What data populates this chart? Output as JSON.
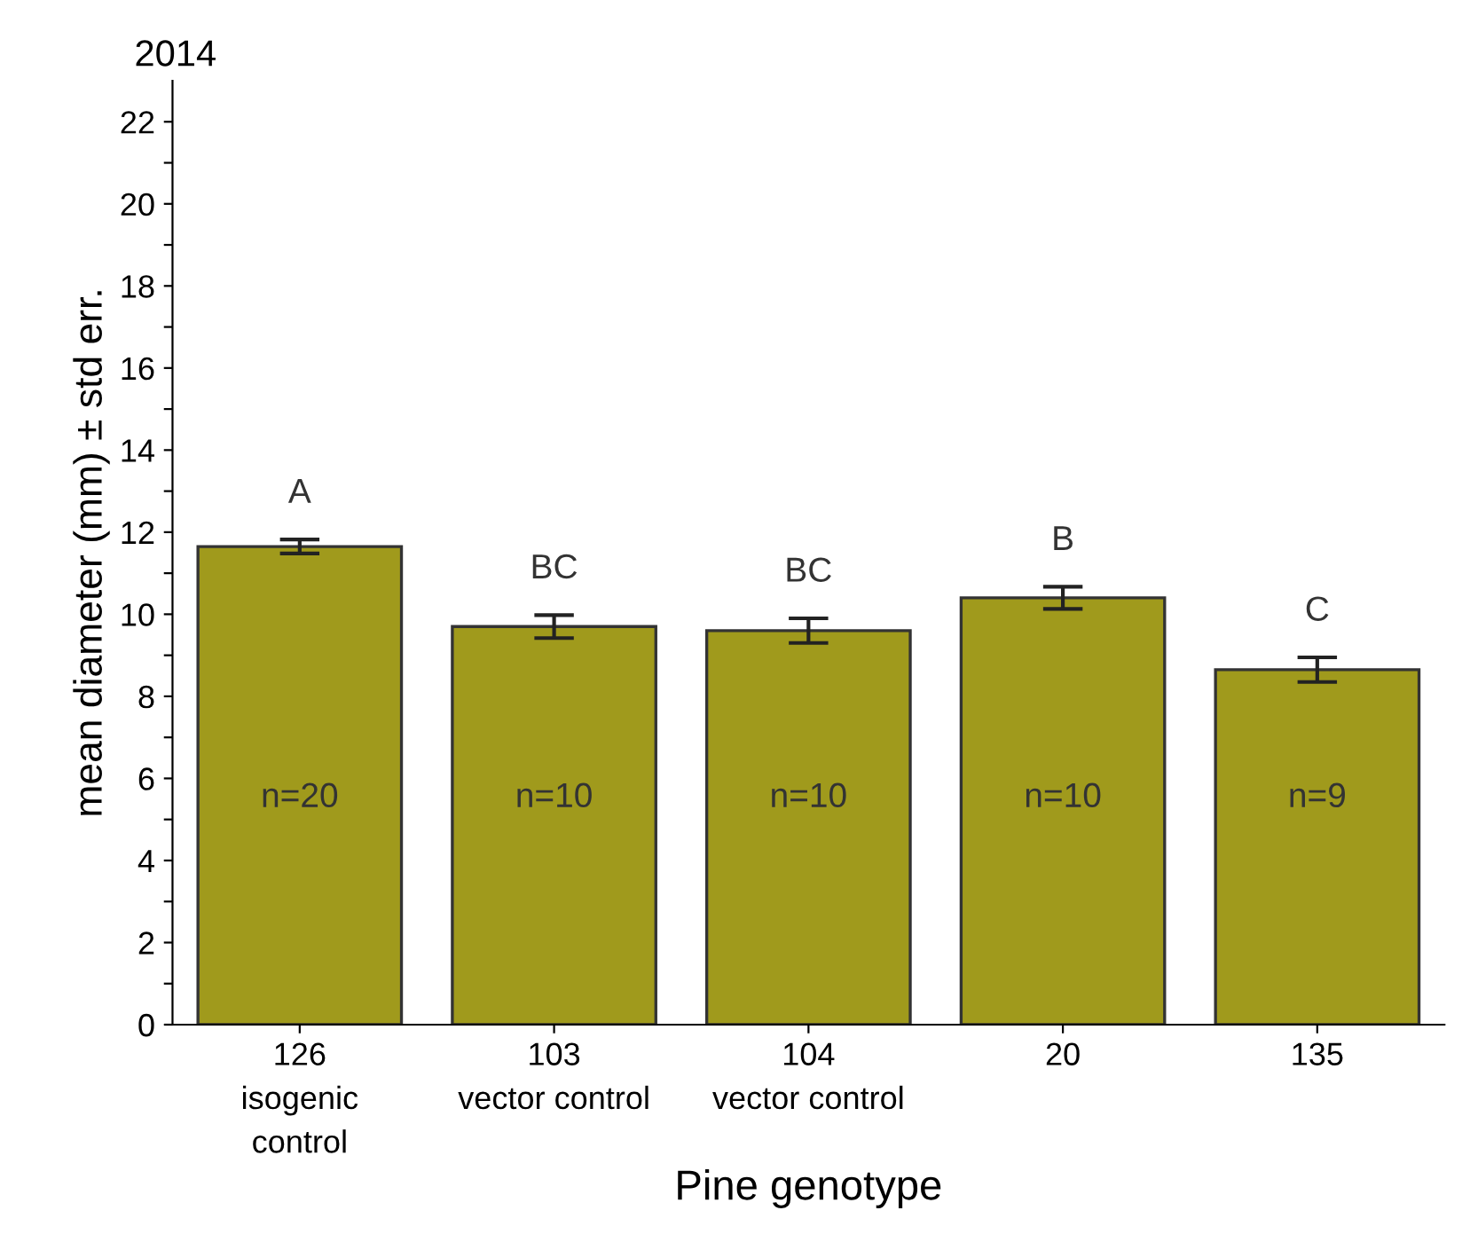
{
  "chart_data": {
    "type": "bar",
    "title": "2014",
    "xlabel": "Pine genotype",
    "ylabel": "mean diameter (mm) ± std err.",
    "categories": [
      "126\nisogenic\ncontrol",
      "103\nvector control",
      "104\nvector control",
      "20",
      "135"
    ],
    "values": [
      11.65,
      9.7,
      9.6,
      10.4,
      8.65
    ],
    "errors": [
      0.17,
      0.28,
      0.3,
      0.27,
      0.3
    ],
    "color": "#a09a1c",
    "ylim": [
      0,
      23
    ],
    "yticks": [
      0,
      {
        "value": 1,
        "label": null
      },
      2,
      {
        "value": 3,
        "label": null
      },
      4,
      {
        "value": 5,
        "label": null
      },
      6,
      {
        "value": 7,
        "label": null
      },
      8,
      {
        "value": 9,
        "label": null
      },
      10,
      {
        "value": 11,
        "label": null
      },
      12,
      {
        "value": 13,
        "label": null
      },
      14,
      {
        "value": 15,
        "label": null
      },
      16,
      {
        "value": 17,
        "label": null
      },
      18,
      {
        "value": 19,
        "label": null
      },
      20,
      {
        "value": 21,
        "label": null
      },
      22
    ],
    "grid": false,
    "annotations": [
      "A",
      "BC",
      "BC",
      "B",
      "C",
      "n=20",
      "n=10",
      "n=10",
      "n=10",
      "n=9"
    ]
  }
}
